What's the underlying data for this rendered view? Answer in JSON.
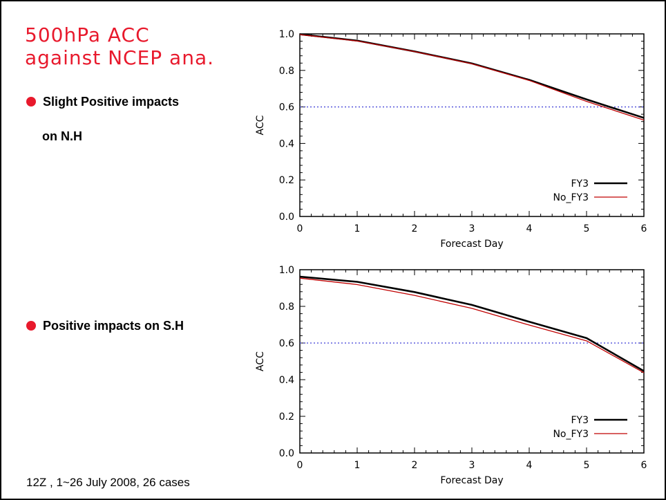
{
  "title_lines": [
    "500hPa ACC",
    "against NCEP ana."
  ],
  "bullets": [
    {
      "line1": "Slight Positive impacts",
      "line2": "on N.H"
    },
    {
      "line1": "Positive impacts on S.H"
    }
  ],
  "footnote": "12Z , 1~26 July 2008, 26 cases",
  "colors": {
    "title": "#e8192c",
    "bullet_dot": "#e8192c",
    "fy3": "#000000",
    "no_fy3": "#c00000",
    "reference_line": "#3a3ad6"
  },
  "chart_data": [
    {
      "type": "line",
      "title": "",
      "xlabel": "Forecast Day",
      "ylabel": "ACC",
      "x": [
        0,
        1,
        2,
        3,
        4,
        5,
        6
      ],
      "x_ticks": [
        "0",
        "1",
        "2",
        "3",
        "4",
        "5",
        "6"
      ],
      "y_ticks": [
        "0.0",
        "0.2",
        "0.4",
        "0.6",
        "0.8",
        "1.0"
      ],
      "xlim": [
        0,
        6
      ],
      "ylim": [
        0,
        1
      ],
      "reference_line": 0.6,
      "legend_position": "bottom-right",
      "series": [
        {
          "name": "FY3",
          "values": [
            0.998,
            0.963,
            0.904,
            0.838,
            0.748,
            0.641,
            0.54
          ]
        },
        {
          "name": "No_FY3",
          "values": [
            0.996,
            0.961,
            0.903,
            0.836,
            0.745,
            0.63,
            0.528
          ]
        }
      ]
    },
    {
      "type": "line",
      "title": "",
      "xlabel": "Forecast Day",
      "ylabel": "ACC",
      "x": [
        0,
        1,
        2,
        3,
        4,
        5,
        6
      ],
      "x_ticks": [
        "0",
        "1",
        "2",
        "3",
        "4",
        "5",
        "6"
      ],
      "y_ticks": [
        "0.0",
        "0.2",
        "0.4",
        "0.6",
        "0.8",
        "1.0"
      ],
      "xlim": [
        0,
        6
      ],
      "ylim": [
        0,
        1
      ],
      "reference_line": 0.6,
      "legend_position": "bottom-right",
      "series": [
        {
          "name": "FY3",
          "values": [
            0.962,
            0.934,
            0.878,
            0.808,
            0.716,
            0.627,
            0.447
          ]
        },
        {
          "name": "No_FY3",
          "values": [
            0.954,
            0.919,
            0.86,
            0.789,
            0.698,
            0.612,
            0.438
          ]
        }
      ]
    }
  ]
}
